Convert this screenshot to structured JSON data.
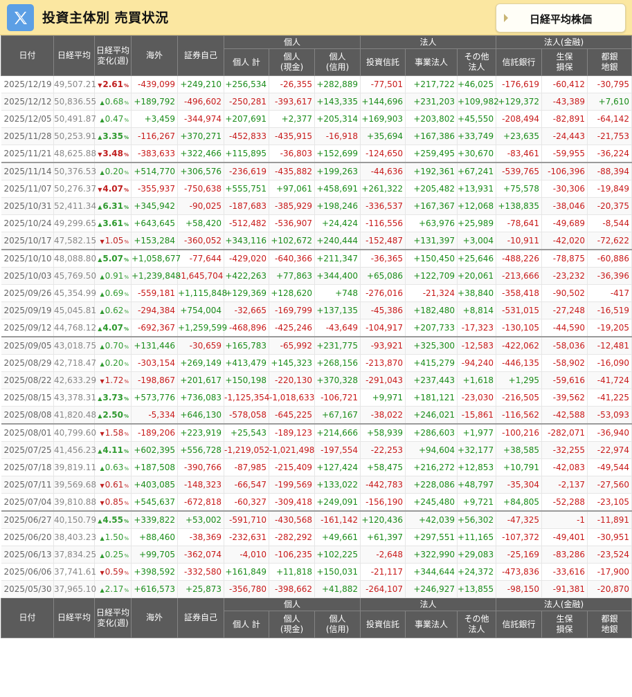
{
  "header": {
    "title": "投資主体別 売買状況",
    "nikkei_button": "日経平均株価"
  },
  "colors": {
    "header_bg": "#fbe7a1",
    "x_button": "#5c9fe5",
    "table_head": "#5b5b5b",
    "positive": "#1a8c1a",
    "negative": "#c81a1a"
  },
  "icons": {
    "x_logo": "x-logo-icon",
    "button_arrow": "triangle-right-icon"
  },
  "columns": {
    "date": "日付",
    "nikkei": "日経平均",
    "change": [
      "日経平均",
      "変化(週)"
    ],
    "foreign": "海外",
    "proprietary": "証券自己",
    "group_individual": "個人",
    "ind_total": "個人 計",
    "ind_cash": [
      "個人",
      "(現金)"
    ],
    "ind_margin": [
      "個人",
      "(信用)"
    ],
    "group_corporate": "法人",
    "inv_trust": "投資信託",
    "business_corp": "事業法人",
    "other_corp": [
      "その他",
      "法人"
    ],
    "group_financial": "法人(金融)",
    "trust_bank": "信託銀行",
    "life_insurance": [
      "生保",
      "損保"
    ],
    "regional_bank": [
      "都銀",
      "地銀"
    ]
  },
  "rows": [
    {
      "date": "2025/12/19",
      "nikkei": "49,507.21",
      "chg": "2.61",
      "up": false,
      "foreign": "-439,099",
      "prop": "+249,210",
      "indTotal": "+256,534",
      "indCash": "-26,355",
      "indMargin": "+282,889",
      "invTrust": "-77,501",
      "bizCorp": "+217,722",
      "otherCorp": "+46,025",
      "trustBank": "-176,619",
      "lifeIns": "-60,412",
      "regBank": "-30,795"
    },
    {
      "date": "2025/12/12",
      "nikkei": "50,836.55",
      "chg": "0.68",
      "up": true,
      "foreign": "+189,792",
      "prop": "-496,602",
      "indTotal": "-250,281",
      "indCash": "-393,617",
      "indMargin": "+143,335",
      "invTrust": "+144,696",
      "bizCorp": "+231,203",
      "otherCorp": "+109,982",
      "trustBank": "+129,372",
      "lifeIns": "-43,389",
      "regBank": "+7,610"
    },
    {
      "date": "2025/12/05",
      "nikkei": "50,491.87",
      "chg": "0.47",
      "up": true,
      "foreign": "+3,459",
      "prop": "-344,974",
      "indTotal": "+207,691",
      "indCash": "+2,377",
      "indMargin": "+205,314",
      "invTrust": "+169,903",
      "bizCorp": "+203,802",
      "otherCorp": "+45,550",
      "trustBank": "-208,494",
      "lifeIns": "-82,891",
      "regBank": "-64,142"
    },
    {
      "date": "2025/11/28",
      "nikkei": "50,253.91",
      "chg": "3.35",
      "up": true,
      "foreign": "-116,267",
      "prop": "+370,271",
      "indTotal": "-452,833",
      "indCash": "-435,915",
      "indMargin": "-16,918",
      "invTrust": "+35,694",
      "bizCorp": "+167,386",
      "otherCorp": "+33,749",
      "trustBank": "+23,635",
      "lifeIns": "-24,443",
      "regBank": "-21,753"
    },
    {
      "date": "2025/11/21",
      "nikkei": "48,625.88",
      "chg": "3.48",
      "up": false,
      "foreign": "-383,633",
      "prop": "+322,466",
      "indTotal": "+115,895",
      "indCash": "-36,803",
      "indMargin": "+152,699",
      "invTrust": "-124,650",
      "bizCorp": "+259,495",
      "otherCorp": "+30,670",
      "trustBank": "-83,461",
      "lifeIns": "-59,955",
      "regBank": "-36,224"
    },
    {
      "date": "2025/11/14",
      "nikkei": "50,376.53",
      "chg": "0.20",
      "up": true,
      "foreign": "+514,770",
      "prop": "+306,576",
      "indTotal": "-236,619",
      "indCash": "-435,882",
      "indMargin": "+199,263",
      "invTrust": "-44,636",
      "bizCorp": "+192,361",
      "otherCorp": "+67,241",
      "trustBank": "-539,765",
      "lifeIns": "-106,396",
      "regBank": "-88,394"
    },
    {
      "date": "2025/11/07",
      "nikkei": "50,276.37",
      "chg": "4.07",
      "up": false,
      "foreign": "-355,937",
      "prop": "-750,638",
      "indTotal": "+555,751",
      "indCash": "+97,061",
      "indMargin": "+458,691",
      "invTrust": "+261,322",
      "bizCorp": "+205,482",
      "otherCorp": "+13,931",
      "trustBank": "+75,578",
      "lifeIns": "-30,306",
      "regBank": "-19,849"
    },
    {
      "date": "2025/10/31",
      "nikkei": "52,411.34",
      "chg": "6.31",
      "up": true,
      "foreign": "+345,942",
      "prop": "-90,025",
      "indTotal": "-187,683",
      "indCash": "-385,929",
      "indMargin": "+198,246",
      "invTrust": "-336,537",
      "bizCorp": "+167,367",
      "otherCorp": "+12,068",
      "trustBank": "+138,835",
      "lifeIns": "-38,046",
      "regBank": "-20,375"
    },
    {
      "date": "2025/10/24",
      "nikkei": "49,299.65",
      "chg": "3.61",
      "up": true,
      "foreign": "+643,645",
      "prop": "+58,420",
      "indTotal": "-512,482",
      "indCash": "-536,907",
      "indMargin": "+24,424",
      "invTrust": "-116,556",
      "bizCorp": "+63,976",
      "otherCorp": "+25,989",
      "trustBank": "-78,641",
      "lifeIns": "-49,689",
      "regBank": "-8,544"
    },
    {
      "date": "2025/10/17",
      "nikkei": "47,582.15",
      "chg": "1.05",
      "up": false,
      "foreign": "+153,284",
      "prop": "-360,052",
      "indTotal": "+343,116",
      "indCash": "+102,672",
      "indMargin": "+240,444",
      "invTrust": "-152,487",
      "bizCorp": "+131,397",
      "otherCorp": "+3,004",
      "trustBank": "-10,911",
      "lifeIns": "-42,020",
      "regBank": "-72,622"
    },
    {
      "date": "2025/10/10",
      "nikkei": "48,088.80",
      "chg": "5.07",
      "up": true,
      "foreign": "+1,058,677",
      "prop": "-77,644",
      "indTotal": "-429,020",
      "indCash": "-640,366",
      "indMargin": "+211,347",
      "invTrust": "-36,365",
      "bizCorp": "+150,450",
      "otherCorp": "+25,646",
      "trustBank": "-488,226",
      "lifeIns": "-78,875",
      "regBank": "-60,886"
    },
    {
      "date": "2025/10/03",
      "nikkei": "45,769.50",
      "chg": "0.91",
      "up": true,
      "foreign": "+1,239,848",
      "prop": "-1,645,704",
      "indTotal": "+422,263",
      "indCash": "+77,863",
      "indMargin": "+344,400",
      "invTrust": "+65,086",
      "bizCorp": "+122,709",
      "otherCorp": "+20,061",
      "trustBank": "-213,666",
      "lifeIns": "-23,232",
      "regBank": "-36,396"
    },
    {
      "date": "2025/09/26",
      "nikkei": "45,354.99",
      "chg": "0.69",
      "up": true,
      "foreign": "-559,181",
      "prop": "+1,115,848",
      "indTotal": "+129,369",
      "indCash": "+128,620",
      "indMargin": "+748",
      "invTrust": "-276,016",
      "bizCorp": "-21,324",
      "otherCorp": "+38,840",
      "trustBank": "-358,418",
      "lifeIns": "-90,502",
      "regBank": "-417"
    },
    {
      "date": "2025/09/19",
      "nikkei": "45,045.81",
      "chg": "0.62",
      "up": true,
      "foreign": "-294,384",
      "prop": "+754,004",
      "indTotal": "-32,665",
      "indCash": "-169,799",
      "indMargin": "+137,135",
      "invTrust": "-45,386",
      "bizCorp": "+182,480",
      "otherCorp": "+8,814",
      "trustBank": "-531,015",
      "lifeIns": "-27,248",
      "regBank": "-16,519"
    },
    {
      "date": "2025/09/12",
      "nikkei": "44,768.12",
      "chg": "4.07",
      "up": true,
      "foreign": "-692,367",
      "prop": "+1,259,599",
      "indTotal": "-468,896",
      "indCash": "-425,246",
      "indMargin": "-43,649",
      "invTrust": "-104,917",
      "bizCorp": "+207,733",
      "otherCorp": "-17,323",
      "trustBank": "-130,105",
      "lifeIns": "-44,590",
      "regBank": "-19,205"
    },
    {
      "date": "2025/09/05",
      "nikkei": "43,018.75",
      "chg": "0.70",
      "up": true,
      "foreign": "+131,446",
      "prop": "-30,659",
      "indTotal": "+165,783",
      "indCash": "-65,992",
      "indMargin": "+231,775",
      "invTrust": "-93,921",
      "bizCorp": "+325,300",
      "otherCorp": "-12,583",
      "trustBank": "-422,062",
      "lifeIns": "-58,036",
      "regBank": "-12,481"
    },
    {
      "date": "2025/08/29",
      "nikkei": "42,718.47",
      "chg": "0.20",
      "up": true,
      "foreign": "-303,154",
      "prop": "+269,149",
      "indTotal": "+413,479",
      "indCash": "+145,323",
      "indMargin": "+268,156",
      "invTrust": "-213,870",
      "bizCorp": "+415,279",
      "otherCorp": "-94,240",
      "trustBank": "-446,135",
      "lifeIns": "-58,902",
      "regBank": "-16,090"
    },
    {
      "date": "2025/08/22",
      "nikkei": "42,633.29",
      "chg": "1.72",
      "up": false,
      "foreign": "-198,867",
      "prop": "+201,617",
      "indTotal": "+150,198",
      "indCash": "-220,130",
      "indMargin": "+370,328",
      "invTrust": "-291,043",
      "bizCorp": "+237,443",
      "otherCorp": "+1,618",
      "trustBank": "+1,295",
      "lifeIns": "-59,616",
      "regBank": "-41,724"
    },
    {
      "date": "2025/08/15",
      "nikkei": "43,378.31",
      "chg": "3.73",
      "up": true,
      "foreign": "+573,776",
      "prop": "+736,083",
      "indTotal": "-1,125,354",
      "indCash": "-1,018,633",
      "indMargin": "-106,721",
      "invTrust": "+9,971",
      "bizCorp": "+181,121",
      "otherCorp": "-23,030",
      "trustBank": "-216,505",
      "lifeIns": "-39,562",
      "regBank": "-41,225"
    },
    {
      "date": "2025/08/08",
      "nikkei": "41,820.48",
      "chg": "2.50",
      "up": true,
      "foreign": "-5,334",
      "prop": "+646,130",
      "indTotal": "-578,058",
      "indCash": "-645,225",
      "indMargin": "+67,167",
      "invTrust": "-38,022",
      "bizCorp": "+246,021",
      "otherCorp": "-15,861",
      "trustBank": "-116,562",
      "lifeIns": "-42,588",
      "regBank": "-53,093"
    },
    {
      "date": "2025/08/01",
      "nikkei": "40,799.60",
      "chg": "1.58",
      "up": false,
      "foreign": "-189,206",
      "prop": "+223,919",
      "indTotal": "+25,543",
      "indCash": "-189,123",
      "indMargin": "+214,666",
      "invTrust": "+58,939",
      "bizCorp": "+286,603",
      "otherCorp": "+1,977",
      "trustBank": "-100,216",
      "lifeIns": "-282,071",
      "regBank": "-36,940"
    },
    {
      "date": "2025/07/25",
      "nikkei": "41,456.23",
      "chg": "4.11",
      "up": true,
      "foreign": "+602,395",
      "prop": "+556,728",
      "indTotal": "-1,219,052",
      "indCash": "-1,021,498",
      "indMargin": "-197,554",
      "invTrust": "-22,253",
      "bizCorp": "+94,604",
      "otherCorp": "+32,177",
      "trustBank": "+38,585",
      "lifeIns": "-32,255",
      "regBank": "-22,974"
    },
    {
      "date": "2025/07/18",
      "nikkei": "39,819.11",
      "chg": "0.63",
      "up": true,
      "foreign": "+187,508",
      "prop": "-390,766",
      "indTotal": "-87,985",
      "indCash": "-215,409",
      "indMargin": "+127,424",
      "invTrust": "+58,475",
      "bizCorp": "+216,272",
      "otherCorp": "+12,853",
      "trustBank": "+10,791",
      "lifeIns": "-42,083",
      "regBank": "-49,544"
    },
    {
      "date": "2025/07/11",
      "nikkei": "39,569.68",
      "chg": "0.61",
      "up": false,
      "foreign": "+403,085",
      "prop": "-148,323",
      "indTotal": "-66,547",
      "indCash": "-199,569",
      "indMargin": "+133,022",
      "invTrust": "-442,783",
      "bizCorp": "+228,086",
      "otherCorp": "+48,797",
      "trustBank": "-35,304",
      "lifeIns": "-2,137",
      "regBank": "-27,560"
    },
    {
      "date": "2025/07/04",
      "nikkei": "39,810.88",
      "chg": "0.85",
      "up": false,
      "foreign": "+545,637",
      "prop": "-672,818",
      "indTotal": "-60,327",
      "indCash": "-309,418",
      "indMargin": "+249,091",
      "invTrust": "-156,190",
      "bizCorp": "+245,480",
      "otherCorp": "+9,721",
      "trustBank": "+84,805",
      "lifeIns": "-52,288",
      "regBank": "-23,105"
    },
    {
      "date": "2025/06/27",
      "nikkei": "40,150.79",
      "chg": "4.55",
      "up": true,
      "foreign": "+339,822",
      "prop": "+53,002",
      "indTotal": "-591,710",
      "indCash": "-430,568",
      "indMargin": "-161,142",
      "invTrust": "+120,436",
      "bizCorp": "+42,039",
      "otherCorp": "+56,302",
      "trustBank": "-47,325",
      "lifeIns": "-1",
      "regBank": "-11,891"
    },
    {
      "date": "2025/06/20",
      "nikkei": "38,403.23",
      "chg": "1.50",
      "up": true,
      "foreign": "+88,460",
      "prop": "-38,369",
      "indTotal": "-232,631",
      "indCash": "-282,292",
      "indMargin": "+49,661",
      "invTrust": "+61,397",
      "bizCorp": "+297,551",
      "otherCorp": "+11,165",
      "trustBank": "-107,372",
      "lifeIns": "-49,401",
      "regBank": "-30,951"
    },
    {
      "date": "2025/06/13",
      "nikkei": "37,834.25",
      "chg": "0.25",
      "up": true,
      "foreign": "+99,705",
      "prop": "-362,074",
      "indTotal": "-4,010",
      "indCash": "-106,235",
      "indMargin": "+102,225",
      "invTrust": "-2,648",
      "bizCorp": "+322,990",
      "otherCorp": "+29,083",
      "trustBank": "-25,169",
      "lifeIns": "-83,286",
      "regBank": "-23,524"
    },
    {
      "date": "2025/06/06",
      "nikkei": "37,741.61",
      "chg": "0.59",
      "up": false,
      "foreign": "+398,592",
      "prop": "-332,580",
      "indTotal": "+161,849",
      "indCash": "+11,818",
      "indMargin": "+150,031",
      "invTrust": "-21,117",
      "bizCorp": "+344,644",
      "otherCorp": "+24,372",
      "trustBank": "-473,836",
      "lifeIns": "-33,616",
      "regBank": "-17,900"
    },
    {
      "date": "2025/05/30",
      "nikkei": "37,965.10",
      "chg": "2.17",
      "up": true,
      "foreign": "+616,573",
      "prop": "+25,873",
      "indTotal": "-356,780",
      "indCash": "-398,662",
      "indMargin": "+41,882",
      "invTrust": "-264,107",
      "bizCorp": "+246,927",
      "otherCorp": "+13,855",
      "trustBank": "-98,150",
      "lifeIns": "-91,381",
      "regBank": "-20,870"
    }
  ]
}
